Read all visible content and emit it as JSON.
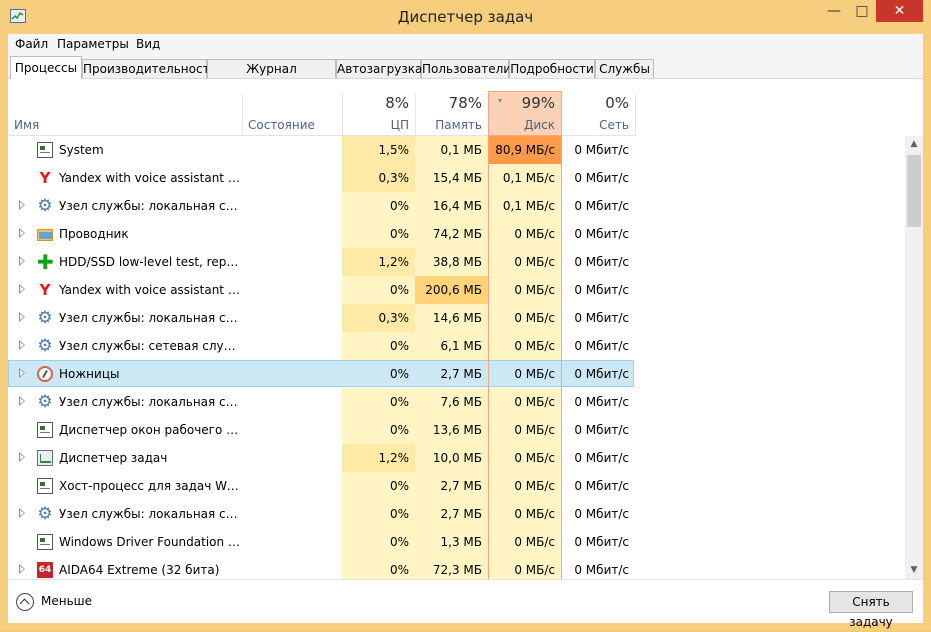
{
  "window": {
    "title": "Диспетчер задач",
    "minimize": "—",
    "maximize": "□",
    "close": "✕"
  },
  "menu": [
    "Файл",
    "Параметры",
    "Вид"
  ],
  "tabs": [
    "Процессы",
    "Производительность",
    "Журнал приложений",
    "Автозагрузка",
    "Пользователи",
    "Подробности",
    "Службы"
  ],
  "columns": {
    "name": "Имя",
    "status": "Состояние",
    "cpu": {
      "pct": "8%",
      "label": "ЦП"
    },
    "mem": {
      "pct": "78%",
      "label": "Память"
    },
    "disk": {
      "pct": "99%",
      "label": "Диск",
      "sort_arrow": "▾"
    },
    "net": {
      "pct": "0%",
      "label": "Сеть"
    }
  },
  "rows": [
    {
      "icon": "system-icon",
      "expandable": false,
      "selected": false,
      "name": "System",
      "status": "",
      "cpu": "1,5%",
      "mem": "0,1 МБ",
      "disk": "80,9 МБ/с",
      "net": "0 Мбит/с",
      "cpu_level": 2,
      "mem_level": 1,
      "disk_level": 4
    },
    {
      "icon": "yandex-icon",
      "expandable": false,
      "selected": false,
      "name": "Yandex with voice assistant Alice",
      "status": "",
      "cpu": "0,3%",
      "mem": "15,4 МБ",
      "disk": "0,1 МБ/с",
      "net": "0 Мбит/с",
      "cpu_level": 2,
      "mem_level": 1,
      "disk_level": 1
    },
    {
      "icon": "service-gear-icon",
      "expandable": true,
      "selected": false,
      "name": "Узел службы: локальная служ...",
      "status": "",
      "cpu": "0%",
      "mem": "16,4 МБ",
      "disk": "0,1 МБ/с",
      "net": "0 Мбит/с",
      "cpu_level": 1,
      "mem_level": 1,
      "disk_level": 1
    },
    {
      "icon": "explorer-folder-icon",
      "expandable": true,
      "selected": false,
      "name": "Проводник",
      "status": "",
      "cpu": "0%",
      "mem": "74,2 МБ",
      "disk": "0 МБ/с",
      "net": "0 Мбит/с",
      "cpu_level": 1,
      "mem_level": 1,
      "disk_level": 1
    },
    {
      "icon": "green-plus-icon",
      "expandable": true,
      "selected": false,
      "name": "HDD/SSD low-level test, repair ...",
      "status": "",
      "cpu": "1,2%",
      "mem": "38,8 МБ",
      "disk": "0 МБ/с",
      "net": "0 Мбит/с",
      "cpu_level": 2,
      "mem_level": 1,
      "disk_level": 1
    },
    {
      "icon": "yandex-icon",
      "expandable": true,
      "selected": false,
      "name": "Yandex with voice assistant Alic...",
      "status": "",
      "cpu": "0%",
      "mem": "200,6 МБ",
      "disk": "0 МБ/с",
      "net": "0 Мбит/с",
      "cpu_level": 1,
      "mem_level": 3,
      "disk_level": 1
    },
    {
      "icon": "service-gear-icon",
      "expandable": true,
      "selected": false,
      "name": "Узел службы: локальная систе...",
      "status": "",
      "cpu": "0,3%",
      "mem": "14,6 МБ",
      "disk": "0 МБ/с",
      "net": "0 Мбит/с",
      "cpu_level": 2,
      "mem_level": 1,
      "disk_level": 1
    },
    {
      "icon": "service-gear-icon",
      "expandable": true,
      "selected": false,
      "name": "Узел службы: сетевая служба ...",
      "status": "",
      "cpu": "0%",
      "mem": "6,1 МБ",
      "disk": "0 МБ/с",
      "net": "0 Мбит/с",
      "cpu_level": 1,
      "mem_level": 1,
      "disk_level": 1
    },
    {
      "icon": "scissors-icon",
      "expandable": true,
      "selected": true,
      "name": "Ножницы",
      "status": "",
      "cpu": "0%",
      "mem": "2,7 МБ",
      "disk": "0 МБ/с",
      "net": "0 Мбит/с",
      "cpu_level": 1,
      "mem_level": 1,
      "disk_level": 1
    },
    {
      "icon": "service-gear-icon",
      "expandable": true,
      "selected": false,
      "name": "Узел службы: локальная служ...",
      "status": "",
      "cpu": "0%",
      "mem": "7,6 МБ",
      "disk": "0 МБ/с",
      "net": "0 Мбит/с",
      "cpu_level": 1,
      "mem_level": 1,
      "disk_level": 1
    },
    {
      "icon": "system-icon",
      "expandable": false,
      "selected": false,
      "name": "Диспетчер окон рабочего стола",
      "status": "",
      "cpu": "0%",
      "mem": "13,6 МБ",
      "disk": "0 МБ/с",
      "net": "0 Мбит/с",
      "cpu_level": 1,
      "mem_level": 1,
      "disk_level": 1
    },
    {
      "icon": "task-manager-icon",
      "expandable": true,
      "selected": false,
      "name": "Диспетчер задач",
      "status": "",
      "cpu": "1,2%",
      "mem": "10,0 МБ",
      "disk": "0 МБ/с",
      "net": "0 Мбит/с",
      "cpu_level": 2,
      "mem_level": 1,
      "disk_level": 1
    },
    {
      "icon": "system-icon",
      "expandable": false,
      "selected": false,
      "name": "Хост-процесс для задач Windo...",
      "status": "",
      "cpu": "0%",
      "mem": "2,7 МБ",
      "disk": "0 МБ/с",
      "net": "0 Мбит/с",
      "cpu_level": 1,
      "mem_level": 1,
      "disk_level": 1
    },
    {
      "icon": "service-gear-icon",
      "expandable": true,
      "selected": false,
      "name": "Узел службы: локальная служ...",
      "status": "",
      "cpu": "0%",
      "mem": "2,7 МБ",
      "disk": "0 МБ/с",
      "net": "0 Мбит/с",
      "cpu_level": 1,
      "mem_level": 1,
      "disk_level": 1
    },
    {
      "icon": "system-icon",
      "expandable": false,
      "selected": false,
      "name": "Windows Driver Foundation (W...",
      "status": "",
      "cpu": "0%",
      "mem": "1,3 МБ",
      "disk": "0 МБ/с",
      "net": "0 Мбит/с",
      "cpu_level": 1,
      "mem_level": 1,
      "disk_level": 1
    },
    {
      "icon": "aida64-icon",
      "expandable": true,
      "selected": false,
      "name": "AIDA64 Extreme (32 бита)",
      "status": "",
      "cpu": "0%",
      "mem": "72,3 МБ",
      "disk": "0 МБ/с",
      "net": "0 Мбит/с",
      "cpu_level": 1,
      "mem_level": 1,
      "disk_level": 1
    }
  ],
  "heat_colors": {
    "1": "#fff4c4",
    "2": "#ffe9a7",
    "3": "#ffd37a",
    "4": "#ff9a4a"
  },
  "footer": {
    "less": "Меньше",
    "end_task": "Снять задачу"
  },
  "scrollbar": {
    "up": "▲",
    "down": "▼"
  }
}
